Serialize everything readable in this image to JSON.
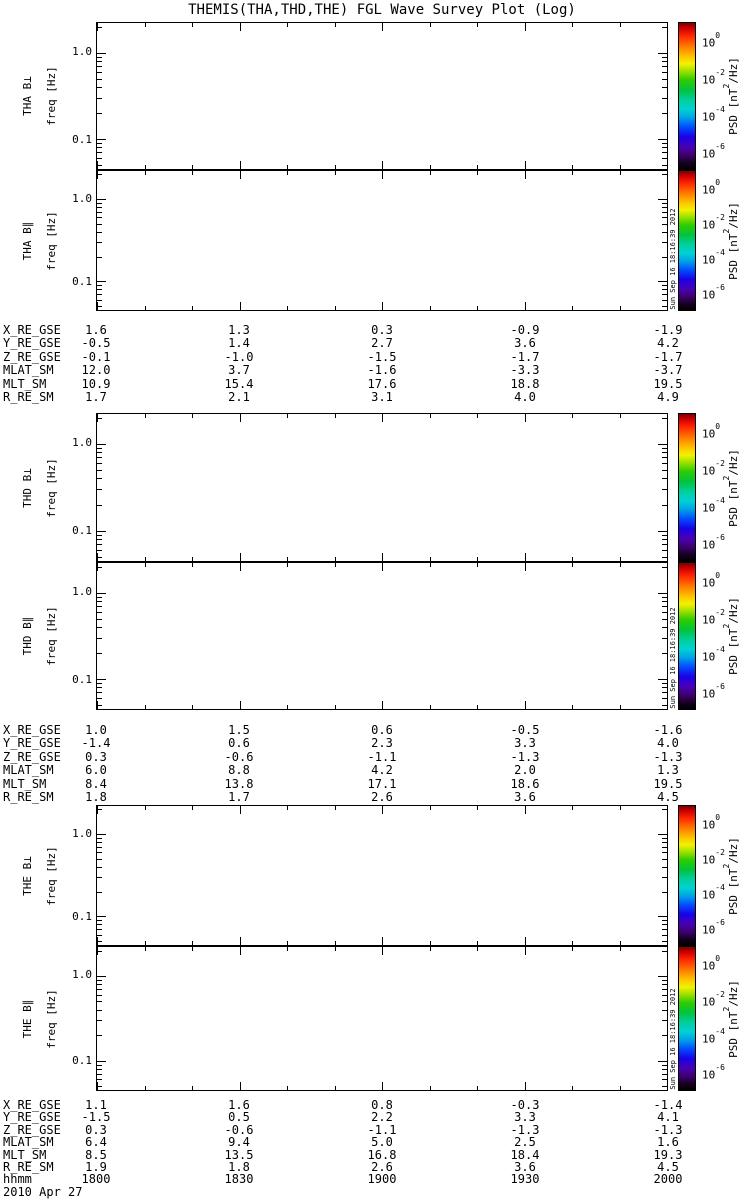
{
  "side_timestamp": "Sun Sep 16 18:16:39 2012",
  "bottom": {
    "hhmm_label": "hhmm",
    "date": "2010 Apr 27"
  },
  "chart_data": {
    "type": "heatmap",
    "title": "THEMIS(THA,THD,THE) FGL Wave Survey Plot (Log)",
    "panels": [
      {
        "label": "THA B⊥",
        "slug": "tha-bperp",
        "values": [],
        "note": "panel blank — no spectrogram data rendered"
      },
      {
        "label": "THA B∥",
        "slug": "tha-bpar",
        "values": [],
        "note": "panel blank — no spectrogram data rendered"
      },
      {
        "label": "THD B⊥",
        "slug": "thd-bperp",
        "values": [],
        "note": "panel blank — no spectrogram data rendered"
      },
      {
        "label": "THD B∥",
        "slug": "thd-bpar",
        "values": [],
        "note": "panel blank — no spectrogram data rendered"
      },
      {
        "label": "THE B⊥",
        "slug": "the-bperp",
        "values": [],
        "note": "panel blank — no spectrogram data rendered"
      },
      {
        "label": "THE B∥",
        "slug": "the-bpar",
        "values": [],
        "note": "panel blank — no spectrogram data rendered"
      }
    ],
    "ylabel": "freq [Hz]",
    "yscale": "log",
    "ylim": [
      0.045,
      2.2
    ],
    "ytick_labels": [
      "1.0",
      "0.1"
    ],
    "ytick_values": [
      1.0,
      0.1
    ],
    "xlabel": "hhmm",
    "xtick_labels": [
      "1800",
      "1830",
      "1900",
      "1930",
      "2000"
    ],
    "x_minor_intervals": 12,
    "grid": false,
    "legend_position": "right-colorbar",
    "colorbar": {
      "label_pre": "PSD [nT",
      "label_sup": "2",
      "label_post": "/Hz]",
      "tick_exponents": [
        "0",
        "-2",
        "-4",
        "-6"
      ],
      "range_exponents": [
        -7,
        1
      ],
      "gradient_stops": [
        [
          "#7a0000",
          0
        ],
        [
          "#d40000",
          4
        ],
        [
          "#ff2a00",
          9
        ],
        [
          "#ff7a00",
          16
        ],
        [
          "#ffc400",
          23
        ],
        [
          "#f2f200",
          28
        ],
        [
          "#9de000",
          33
        ],
        [
          "#2ecc00",
          39
        ],
        [
          "#00c43e",
          46
        ],
        [
          "#00cfa0",
          53
        ],
        [
          "#00d2d2",
          59
        ],
        [
          "#00a0e8",
          65
        ],
        [
          "#0050ff",
          71
        ],
        [
          "#1a00e6",
          78
        ],
        [
          "#4b00b4",
          85
        ],
        [
          "#3a0064",
          91
        ],
        [
          "#14001e",
          96
        ],
        [
          "#000000",
          100
        ]
      ]
    }
  },
  "ephemeris": [
    {
      "satellite": "THA",
      "rows": [
        {
          "label": "X_RE_GSE",
          "values": [
            "1.6",
            "1.3",
            "0.3",
            "-0.9",
            "-1.9"
          ]
        },
        {
          "label": "Y_RE_GSE",
          "values": [
            "-0.5",
            "1.4",
            "2.7",
            "3.6",
            "4.2"
          ]
        },
        {
          "label": "Z_RE_GSE",
          "values": [
            "-0.1",
            "-1.0",
            "-1.5",
            "-1.7",
            "-1.7"
          ]
        },
        {
          "label": "MLAT_SM",
          "values": [
            "12.0",
            "3.7",
            "-1.6",
            "-3.3",
            "-3.7"
          ]
        },
        {
          "label": "MLT_SM",
          "values": [
            "10.9",
            "15.4",
            "17.6",
            "18.8",
            "19.5"
          ]
        },
        {
          "label": "R_RE_SM",
          "values": [
            "1.7",
            "2.1",
            "3.1",
            "4.0",
            "4.9"
          ]
        }
      ]
    },
    {
      "satellite": "THD",
      "rows": [
        {
          "label": "X_RE_GSE",
          "values": [
            "1.0",
            "1.5",
            "0.6",
            "-0.5",
            "-1.6"
          ]
        },
        {
          "label": "Y_RE_GSE",
          "values": [
            "-1.4",
            "0.6",
            "2.3",
            "3.3",
            "4.0"
          ]
        },
        {
          "label": "Z_RE_GSE",
          "values": [
            "0.3",
            "-0.6",
            "-1.1",
            "-1.3",
            "-1.3"
          ]
        },
        {
          "label": "MLAT_SM",
          "values": [
            "6.0",
            "8.8",
            "4.2",
            "2.0",
            "1.3"
          ]
        },
        {
          "label": "MLT_SM",
          "values": [
            "8.4",
            "13.8",
            "17.1",
            "18.6",
            "19.5"
          ]
        },
        {
          "label": "R_RE_SM",
          "values": [
            "1.8",
            "1.7",
            "2.6",
            "3.6",
            "4.5"
          ]
        }
      ]
    },
    {
      "satellite": "THE",
      "rows": [
        {
          "label": "X_RE_GSE",
          "values": [
            "1.1",
            "1.6",
            "0.8",
            "-0.3",
            "-1.4"
          ]
        },
        {
          "label": "Y_RE_GSE",
          "values": [
            "-1.5",
            "0.5",
            "2.2",
            "3.3",
            "4.1"
          ]
        },
        {
          "label": "Z_RE_GSE",
          "values": [
            "0.3",
            "-0.6",
            "-1.1",
            "-1.3",
            "-1.3"
          ]
        },
        {
          "label": "MLAT_SM",
          "values": [
            "6.4",
            "9.4",
            "5.0",
            "2.5",
            "1.6"
          ]
        },
        {
          "label": "MLT_SM",
          "values": [
            "8.5",
            "13.5",
            "16.8",
            "18.4",
            "19.3"
          ]
        },
        {
          "label": "R_RE_SM",
          "values": [
            "1.9",
            "1.8",
            "2.6",
            "3.6",
            "4.5"
          ]
        }
      ]
    }
  ]
}
